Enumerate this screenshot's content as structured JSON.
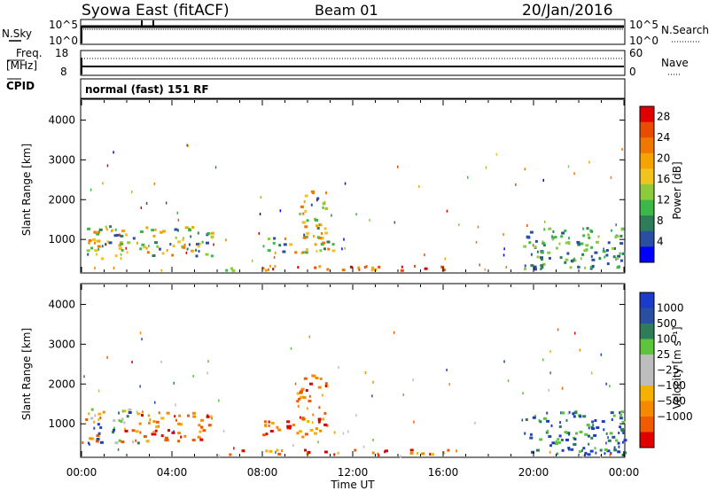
{
  "header": {
    "station": "Syowa East (fitACF)",
    "beam": "Beam 01",
    "date": "20/Jan/2016"
  },
  "noise_panel": {
    "left_label": "N.Sky",
    "right_label": "N.Search",
    "tick_top": "10^5",
    "tick_bottom": "10^0"
  },
  "freq_panel": {
    "left_label_1": "Freq.",
    "left_label_2": "[MHz]",
    "left_tick_top": "18",
    "left_tick_bottom": "8",
    "right_tick_top": "60",
    "right_tick_bottom": "0",
    "right_label": "Nave"
  },
  "cpid": {
    "label": "CPID",
    "mode_text": "normal (fast) 151 RF"
  },
  "colors": {
    "power_scale": [
      "#0000ff",
      "#2a4ea0",
      "#2e7d5a",
      "#3cb84a",
      "#8ccc3c",
      "#f2c21e",
      "#f5a300",
      "#f07800",
      "#e84c00",
      "#e00000"
    ],
    "velocity_scale": [
      "#e00000",
      "#f05a00",
      "#f58a00",
      "#f5b000",
      "#bdbdbd",
      "#bdbdbd",
      "#5ec43a",
      "#2e7d5a",
      "#2a4ea0",
      "#1a3cc8"
    ]
  },
  "chart_data": [
    {
      "type": "heatmap",
      "name": "power",
      "title": "",
      "ylabel": "Slant Range [km]",
      "ylim": [
        180,
        4500
      ],
      "y_ticks": [
        "1000",
        "2000",
        "3000",
        "4000"
      ],
      "x_ticks": [
        "00:00",
        "04:00",
        "08:00",
        "12:00",
        "16:00",
        "20:00",
        "00:00"
      ],
      "colorbar": {
        "label": "Power [dB]",
        "ticks": [
          "4",
          "8",
          "12",
          "16",
          "20",
          "24",
          "28"
        ],
        "range": [
          0,
          30
        ]
      },
      "echo_regions": [
        {
          "t0": 0.0,
          "t1": 2.5,
          "r0": 500,
          "r1": 1350,
          "level": "mid"
        },
        {
          "t0": 2.5,
          "t1": 5.8,
          "r0": 550,
          "r1": 1300,
          "level": "mid"
        },
        {
          "t0": 6.0,
          "t1": 7.2,
          "r0": 200,
          "r1": 330,
          "level": "mid"
        },
        {
          "t0": 8.0,
          "t1": 11.2,
          "r0": 650,
          "r1": 1100,
          "level": "mid"
        },
        {
          "t0": 9.5,
          "t1": 10.8,
          "r0": 1000,
          "r1": 2200,
          "level": "mid"
        },
        {
          "t0": 8.0,
          "t1": 17.0,
          "r0": 200,
          "r1": 330,
          "level": "high"
        },
        {
          "t0": 19.5,
          "t1": 24.0,
          "r0": 200,
          "r1": 1300,
          "level": "low"
        }
      ]
    },
    {
      "type": "heatmap",
      "name": "velocity",
      "title": "",
      "ylabel": "Slant Range [km]",
      "xlabel": "Time UT",
      "ylim": [
        180,
        4500
      ],
      "y_ticks": [
        "1000",
        "2000",
        "3000",
        "4000"
      ],
      "x_ticks": [
        "00:00",
        "04:00",
        "08:00",
        "12:00",
        "16:00",
        "20:00",
        "00:00"
      ],
      "colorbar": {
        "label": "Velocity [m s⁻¹]",
        "ticks": [
          "1000",
          "500",
          "100",
          "25",
          "−25",
          "−100",
          "−500",
          "−1000"
        ]
      },
      "echo_regions": [
        {
          "t0": 0.0,
          "t1": 2.5,
          "r0": 500,
          "r1": 1350,
          "level": "mixed"
        },
        {
          "t0": 2.5,
          "t1": 5.8,
          "r0": 550,
          "r1": 1300,
          "level": "negative"
        },
        {
          "t0": 6.0,
          "t1": 7.2,
          "r0": 200,
          "r1": 330,
          "level": "negative"
        },
        {
          "t0": 8.0,
          "t1": 11.2,
          "r0": 650,
          "r1": 1100,
          "level": "negative"
        },
        {
          "t0": 9.5,
          "t1": 10.8,
          "r0": 1000,
          "r1": 2200,
          "level": "negative"
        },
        {
          "t0": 8.0,
          "t1": 17.0,
          "r0": 200,
          "r1": 330,
          "level": "negative"
        },
        {
          "t0": 19.5,
          "t1": 24.0,
          "r0": 200,
          "r1": 1300,
          "level": "positive"
        }
      ]
    }
  ]
}
